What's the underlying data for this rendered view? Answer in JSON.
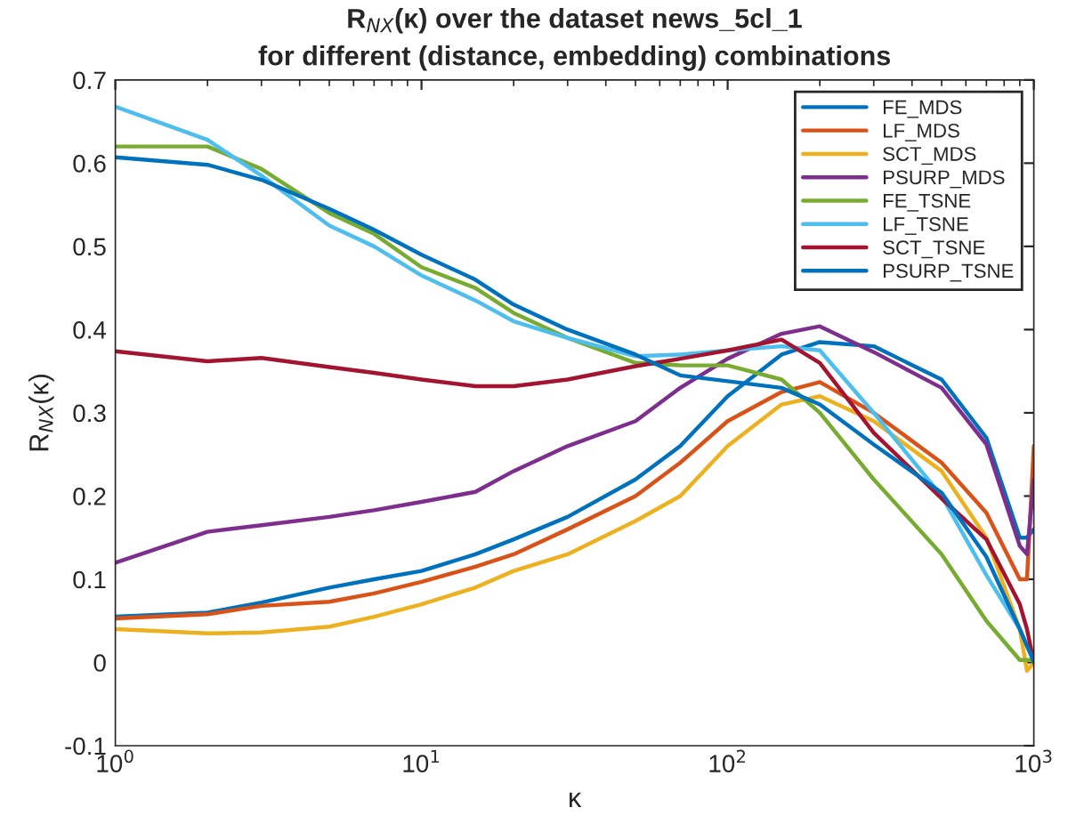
{
  "chart_data": {
    "type": "line",
    "title": "R$_{NX}$(κ) over the dataset news_5cl_1\nfor different (distance, embedding) combinations",
    "xlabel": "κ",
    "ylabel": "R$_{NX}$(κ)",
    "log": "x",
    "xlim": [
      1,
      1000
    ],
    "xticks": [
      {
        "value": 1,
        "label": "10$^{0}$"
      },
      {
        "value": 10,
        "label": "10$^{1}$"
      },
      {
        "value": 100,
        "label": "10$^{2}$"
      },
      {
        "value": 1000,
        "label": "10$^{3}$"
      }
    ],
    "ylim": [
      -0.1,
      0.7
    ],
    "yticks": [
      -0.1,
      0,
      0.1,
      0.2,
      0.3,
      0.4,
      0.5,
      0.6,
      0.7
    ],
    "grid": false,
    "legend": "top right",
    "marker": "none",
    "line_style": "solid",
    "x": [
      1,
      2,
      3,
      5,
      7,
      10,
      15,
      20,
      30,
      50,
      70,
      100,
      150,
      200,
      300,
      500,
      700,
      900,
      950,
      1000
    ],
    "series": [
      {
        "name": "FE_MDS",
        "color": "#0072bd",
        "values": [
          0.055,
          0.06,
          0.072,
          0.09,
          0.1,
          0.11,
          0.13,
          0.148,
          0.175,
          0.22,
          0.26,
          0.32,
          0.37,
          0.385,
          0.38,
          0.34,
          0.27,
          0.15,
          0.15,
          0.16
        ]
      },
      {
        "name": "LF_MDS",
        "color": "#d95319",
        "values": [
          0.053,
          0.058,
          0.068,
          0.073,
          0.083,
          0.097,
          0.115,
          0.13,
          0.16,
          0.2,
          0.24,
          0.29,
          0.325,
          0.337,
          0.3,
          0.24,
          0.18,
          0.1,
          0.1,
          0.26
        ]
      },
      {
        "name": "SCT_MDS",
        "color": "#edb120",
        "values": [
          0.04,
          0.035,
          0.036,
          0.043,
          0.055,
          0.07,
          0.09,
          0.11,
          0.13,
          0.17,
          0.2,
          0.26,
          0.31,
          0.32,
          0.29,
          0.23,
          0.15,
          0.04,
          -0.01,
          0.0
        ]
      },
      {
        "name": "PSURP_MDS",
        "color": "#7e2f8e",
        "values": [
          0.12,
          0.157,
          0.165,
          0.175,
          0.183,
          0.193,
          0.205,
          0.23,
          0.26,
          0.29,
          0.33,
          0.365,
          0.395,
          0.404,
          0.373,
          0.33,
          0.262,
          0.14,
          0.13,
          0.22
        ]
      },
      {
        "name": "FE_TSNE",
        "color": "#77ac30",
        "values": [
          0.62,
          0.62,
          0.593,
          0.54,
          0.515,
          0.475,
          0.45,
          0.42,
          0.39,
          0.36,
          0.357,
          0.357,
          0.34,
          0.3,
          0.22,
          0.13,
          0.05,
          0.003,
          0.003,
          0.003
        ]
      },
      {
        "name": "LF_TSNE",
        "color": "#4dbeee",
        "values": [
          0.668,
          0.628,
          0.585,
          0.525,
          0.5,
          0.465,
          0.435,
          0.41,
          0.39,
          0.368,
          0.37,
          0.375,
          0.38,
          0.375,
          0.3,
          0.2,
          0.105,
          0.04,
          0.02,
          0.005
        ]
      },
      {
        "name": "SCT_TSNE",
        "color": "#a2142f",
        "values": [
          0.374,
          0.362,
          0.366,
          0.355,
          0.348,
          0.34,
          0.332,
          0.332,
          0.34,
          0.356,
          0.365,
          0.375,
          0.388,
          0.36,
          0.276,
          0.197,
          0.148,
          0.07,
          0.04,
          0.0
        ]
      },
      {
        "name": "PSURP_TSNE",
        "color": "#0072bd",
        "values": [
          0.607,
          0.598,
          0.58,
          0.545,
          0.52,
          0.49,
          0.46,
          0.43,
          0.4,
          0.37,
          0.345,
          0.338,
          0.33,
          0.31,
          0.262,
          0.204,
          0.127,
          0.04,
          0.02,
          0.001
        ]
      }
    ]
  }
}
